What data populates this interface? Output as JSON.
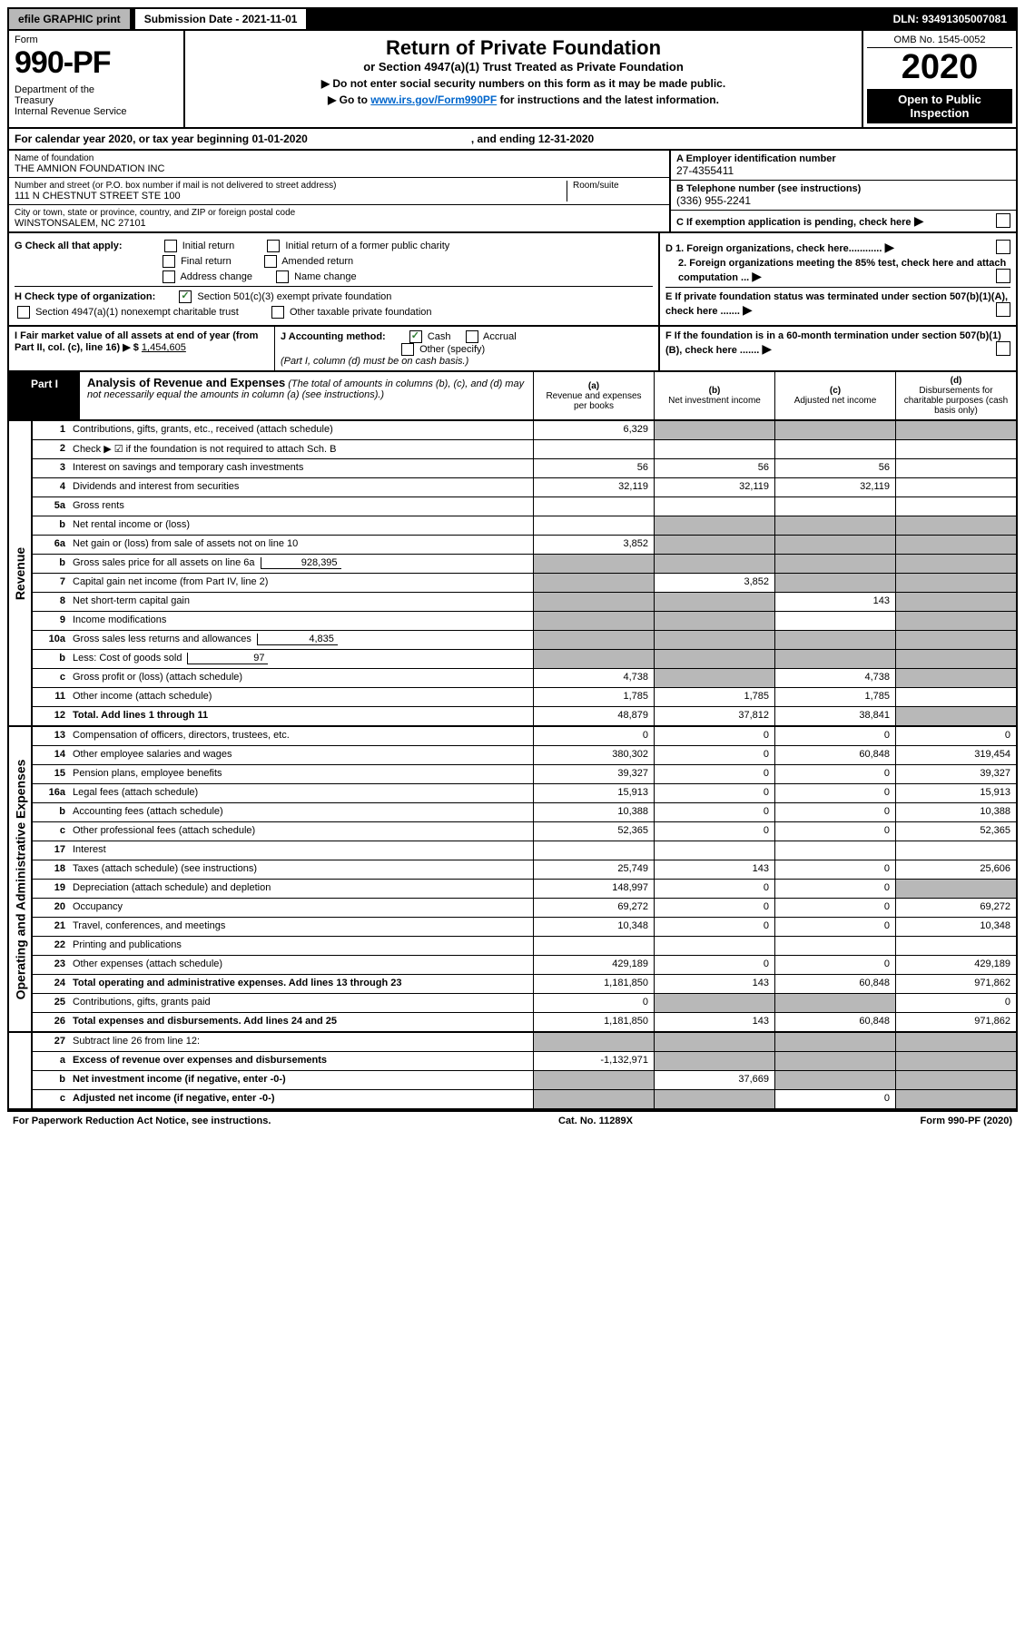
{
  "topbar": {
    "efile": "efile GRAPHIC print",
    "submission": "Submission Date - 2021-11-01",
    "dln": "DLN: 93491305007081"
  },
  "header": {
    "form_label": "Form",
    "form_num": "990-PF",
    "dept": "Department of the Treasury\nInternal Revenue Service",
    "title": "Return of Private Foundation",
    "subtitle": "or Section 4947(a)(1) Trust Treated as Private Foundation",
    "note1": "▶ Do not enter social security numbers on this form as it may be made public.",
    "note2_pre": "▶ Go to ",
    "note2_link": "www.irs.gov/Form990PF",
    "note2_post": " for instructions and the latest information.",
    "omb": "OMB No. 1545-0052",
    "year": "2020",
    "open": "Open to Public Inspection"
  },
  "calendar": {
    "text": "For calendar year 2020, or tax year beginning 01-01-2020",
    "ending": ", and ending 12-31-2020"
  },
  "entity": {
    "name_label": "Name of foundation",
    "name": "THE AMNION FOUNDATION INC",
    "addr_label": "Number and street (or P.O. box number if mail is not delivered to street address)",
    "addr": "111 N CHESTNUT STREET STE 100",
    "room_label": "Room/suite",
    "city_label": "City or town, state or province, country, and ZIP or foreign postal code",
    "city": "WINSTONSALEM, NC  27101",
    "a_label": "A Employer identification number",
    "a_val": "27-4355411",
    "b_label": "B Telephone number (see instructions)",
    "b_val": "(336) 955-2241",
    "c_label": "C If exemption application is pending, check here"
  },
  "g": {
    "label": "G Check all that apply:",
    "initial": "Initial return",
    "initial_public": "Initial return of a former public charity",
    "final": "Final return",
    "amended": "Amended return",
    "addr_change": "Address change",
    "name_change": "Name change"
  },
  "h": {
    "label": "H Check type of organization:",
    "s501": "Section 501(c)(3) exempt private foundation",
    "s4947": "Section 4947(a)(1) nonexempt charitable trust",
    "other_tax": "Other taxable private foundation"
  },
  "d": {
    "d1": "D 1. Foreign organizations, check here............",
    "d2": "2. Foreign organizations meeting the 85% test, check here and attach computation ...",
    "e": "E  If private foundation status was terminated under section 507(b)(1)(A), check here .......",
    "f": "F  If the foundation is in a 60-month termination under section 507(b)(1)(B), check here ......."
  },
  "i": {
    "label": "I Fair market value of all assets at end of year (from Part II, col. (c), line 16) ▶ $",
    "val": "1,454,605"
  },
  "j": {
    "label": "J Accounting method:",
    "cash": "Cash",
    "accrual": "Accrual",
    "other": "Other (specify)",
    "note": "(Part I, column (d) must be on cash basis.)"
  },
  "part1": {
    "label": "Part I",
    "title": "Analysis of Revenue and Expenses",
    "desc": " (The total of amounts in columns (b), (c), and (d) may not necessarily equal the amounts in column (a) (see instructions).)",
    "col_a": "(a) Revenue and expenses per books",
    "col_b": "(b) Net investment income",
    "col_c": "(c) Adjusted net income",
    "col_d": "(d) Disbursements for charitable purposes (cash basis only)"
  },
  "sections": {
    "revenue": "Revenue",
    "expenses": "Operating and Administrative Expenses"
  },
  "rows": [
    {
      "n": "1",
      "label": "Contributions, gifts, grants, etc., received (attach schedule)",
      "a": "6,329",
      "b": "",
      "c": "",
      "d": "",
      "shade_bcd": true
    },
    {
      "n": "2",
      "label": "Check ▶ ☑ if the foundation is not required to attach Sch. B",
      "nocells": true
    },
    {
      "n": "3",
      "label": "Interest on savings and temporary cash investments",
      "a": "56",
      "b": "56",
      "c": "56",
      "d": ""
    },
    {
      "n": "4",
      "label": "Dividends and interest from securities",
      "a": "32,119",
      "b": "32,119",
      "c": "32,119",
      "d": ""
    },
    {
      "n": "5a",
      "label": "Gross rents",
      "a": "",
      "b": "",
      "c": "",
      "d": ""
    },
    {
      "n": "b",
      "label": "Net rental income or (loss)",
      "a": "",
      "b": "",
      "c": "",
      "d": "",
      "shade_bcd": true
    },
    {
      "n": "6a",
      "label": "Net gain or (loss) from sale of assets not on line 10",
      "a": "3,852",
      "b": "",
      "c": "",
      "d": "",
      "shade_bcd": true
    },
    {
      "n": "b",
      "label": "Gross sales price for all assets on line 6a",
      "inline": "928,395",
      "shade_all": true
    },
    {
      "n": "7",
      "label": "Capital gain net income (from Part IV, line 2)",
      "a": "",
      "b": "3,852",
      "c": "",
      "d": "",
      "shade_a": true,
      "shade_cd": true
    },
    {
      "n": "8",
      "label": "Net short-term capital gain",
      "a": "",
      "b": "",
      "c": "143",
      "d": "",
      "shade_ab": true,
      "shade_d": true
    },
    {
      "n": "9",
      "label": "Income modifications",
      "a": "",
      "b": "",
      "c": "",
      "d": "",
      "shade_ab": true,
      "shade_d": true
    },
    {
      "n": "10a",
      "label": "Gross sales less returns and allowances",
      "inline": "4,835",
      "shade_all": true
    },
    {
      "n": "b",
      "label": "Less: Cost of goods sold",
      "inline": "97",
      "shade_all": true
    },
    {
      "n": "c",
      "label": "Gross profit or (loss) (attach schedule)",
      "a": "4,738",
      "b": "",
      "c": "4,738",
      "d": "",
      "shade_b": true,
      "shade_d": true
    },
    {
      "n": "11",
      "label": "Other income (attach schedule)",
      "a": "1,785",
      "b": "1,785",
      "c": "1,785",
      "d": ""
    },
    {
      "n": "12",
      "label": "Total. Add lines 1 through 11",
      "bold": true,
      "a": "48,879",
      "b": "37,812",
      "c": "38,841",
      "d": "",
      "shade_d": true
    }
  ],
  "exp_rows": [
    {
      "n": "13",
      "label": "Compensation of officers, directors, trustees, etc.",
      "a": "0",
      "b": "0",
      "c": "0",
      "d": "0"
    },
    {
      "n": "14",
      "label": "Other employee salaries and wages",
      "a": "380,302",
      "b": "0",
      "c": "60,848",
      "d": "319,454"
    },
    {
      "n": "15",
      "label": "Pension plans, employee benefits",
      "a": "39,327",
      "b": "0",
      "c": "0",
      "d": "39,327"
    },
    {
      "n": "16a",
      "label": "Legal fees (attach schedule)",
      "a": "15,913",
      "b": "0",
      "c": "0",
      "d": "15,913"
    },
    {
      "n": "b",
      "label": "Accounting fees (attach schedule)",
      "a": "10,388",
      "b": "0",
      "c": "0",
      "d": "10,388"
    },
    {
      "n": "c",
      "label": "Other professional fees (attach schedule)",
      "a": "52,365",
      "b": "0",
      "c": "0",
      "d": "52,365"
    },
    {
      "n": "17",
      "label": "Interest",
      "a": "",
      "b": "",
      "c": "",
      "d": ""
    },
    {
      "n": "18",
      "label": "Taxes (attach schedule) (see instructions)",
      "a": "25,749",
      "b": "143",
      "c": "0",
      "d": "25,606"
    },
    {
      "n": "19",
      "label": "Depreciation (attach schedule) and depletion",
      "a": "148,997",
      "b": "0",
      "c": "0",
      "d": "",
      "shade_d": true
    },
    {
      "n": "20",
      "label": "Occupancy",
      "a": "69,272",
      "b": "0",
      "c": "0",
      "d": "69,272"
    },
    {
      "n": "21",
      "label": "Travel, conferences, and meetings",
      "a": "10,348",
      "b": "0",
      "c": "0",
      "d": "10,348"
    },
    {
      "n": "22",
      "label": "Printing and publications",
      "a": "",
      "b": "",
      "c": "",
      "d": ""
    },
    {
      "n": "23",
      "label": "Other expenses (attach schedule)",
      "a": "429,189",
      "b": "0",
      "c": "0",
      "d": "429,189"
    },
    {
      "n": "24",
      "label": "Total operating and administrative expenses. Add lines 13 through 23",
      "bold": true,
      "a": "1,181,850",
      "b": "143",
      "c": "60,848",
      "d": "971,862"
    },
    {
      "n": "25",
      "label": "Contributions, gifts, grants paid",
      "a": "0",
      "b": "",
      "c": "",
      "d": "0",
      "shade_bc": true
    },
    {
      "n": "26",
      "label": "Total expenses and disbursements. Add lines 24 and 25",
      "bold": true,
      "a": "1,181,850",
      "b": "143",
      "c": "60,848",
      "d": "971,862"
    }
  ],
  "net_rows": [
    {
      "n": "27",
      "label": "Subtract line 26 from line 12:",
      "shade_all": true
    },
    {
      "n": "a",
      "label": "Excess of revenue over expenses and disbursements",
      "bold": true,
      "a": "-1,132,971",
      "shade_bcd": true
    },
    {
      "n": "b",
      "label": "Net investment income (if negative, enter -0-)",
      "bold": true,
      "b": "37,669",
      "shade_a": true,
      "shade_cd": true
    },
    {
      "n": "c",
      "label": "Adjusted net income (if negative, enter -0-)",
      "bold": true,
      "c": "0",
      "shade_ab": true,
      "shade_d": true
    }
  ],
  "footer": {
    "left": "For Paperwork Reduction Act Notice, see instructions.",
    "mid": "Cat. No. 11289X",
    "right": "Form 990-PF (2020)"
  }
}
